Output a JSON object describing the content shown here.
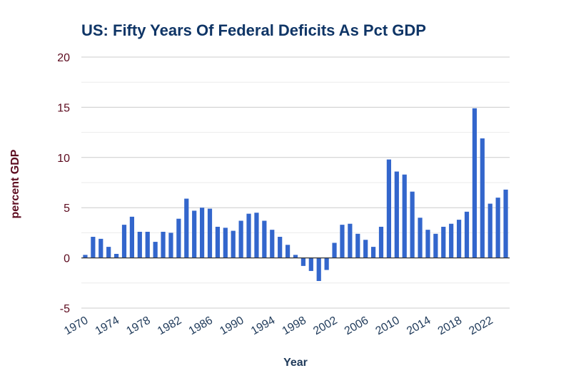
{
  "chart_data": {
    "type": "bar",
    "title": "US: Fifty Years Of Federal Deficits As Pct GDP",
    "xlabel": "Year",
    "ylabel": "percent GDP",
    "ylim": [
      -5,
      20
    ],
    "yticks": [
      -5,
      0,
      5,
      10,
      15,
      20
    ],
    "xtick_labels": [
      "1970",
      "1974",
      "1978",
      "1982",
      "1986",
      "1990",
      "1994",
      "1998",
      "2002",
      "2006",
      "2010",
      "2014",
      "2018",
      "2022"
    ],
    "grid": true,
    "legend": "none",
    "bar_color": "#3366cc",
    "categories": [
      1970,
      1971,
      1972,
      1973,
      1974,
      1975,
      1976,
      1977,
      1978,
      1979,
      1980,
      1981,
      1982,
      1983,
      1984,
      1985,
      1986,
      1987,
      1988,
      1989,
      1990,
      1991,
      1992,
      1993,
      1994,
      1995,
      1996,
      1997,
      1998,
      1999,
      2000,
      2001,
      2002,
      2003,
      2004,
      2005,
      2006,
      2007,
      2008,
      2009,
      2010,
      2011,
      2012,
      2013,
      2014,
      2015,
      2016,
      2017,
      2018,
      2019,
      2020,
      2021,
      2022,
      2023,
      2024
    ],
    "values": [
      0.3,
      2.1,
      1.9,
      1.1,
      0.4,
      3.3,
      4.1,
      2.6,
      2.6,
      1.6,
      2.6,
      2.5,
      3.9,
      5.9,
      4.7,
      5.0,
      4.9,
      3.1,
      3.0,
      2.7,
      3.7,
      4.4,
      4.5,
      3.7,
      2.8,
      2.1,
      1.3,
      0.3,
      -0.8,
      -1.3,
      -2.3,
      -1.2,
      1.5,
      3.3,
      3.4,
      2.4,
      1.8,
      1.1,
      3.1,
      9.8,
      8.6,
      8.3,
      6.6,
      4.0,
      2.8,
      2.4,
      3.1,
      3.4,
      3.8,
      4.6,
      14.9,
      11.9,
      5.4,
      6.0,
      6.8
    ]
  }
}
